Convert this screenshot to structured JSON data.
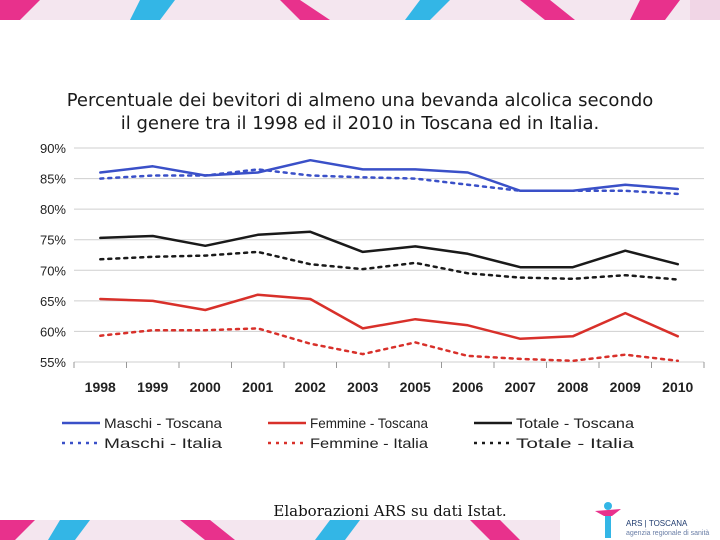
{
  "slide": {
    "title_line1": "Percentuale dei bevitori di almeno una bevanda alcolica secondo",
    "title_line2": "il genere tra il 1998 ed il 2010 in Toscana ed in Italia.",
    "caption": "Elaborazioni ARS su dati Istat.",
    "logo_text": "ARS | TOSCANA",
    "logo_subtext": "agenzia regionale di sanità"
  },
  "colors": {
    "blue": "#3a50c8",
    "red": "#d8302a",
    "black": "#1a1a1a",
    "grid": "#cfcfcf",
    "band_pink": "#e8318c",
    "band_cyan": "#33b6e6",
    "band_light": "#f1d6e6"
  },
  "chart_data": {
    "type": "line",
    "title": "",
    "xlabel": "",
    "ylabel": "",
    "x": [
      "1998",
      "1999",
      "2000",
      "2001",
      "2002",
      "2003",
      "2005",
      "2006",
      "2007",
      "2008",
      "2009",
      "2010"
    ],
    "y_ticks": [
      "90%",
      "85%",
      "80%",
      "75%",
      "70%",
      "65%",
      "60%",
      "55%"
    ],
    "ylim": [
      55,
      90
    ],
    "grid": true,
    "legend_position": "bottom",
    "series": [
      {
        "name": "Maschi - Toscana",
        "color": "blue",
        "style": "solid",
        "values": [
          86.0,
          87.0,
          85.5,
          86.0,
          88.0,
          86.5,
          86.5,
          86.0,
          83.0,
          83.0,
          84.0,
          83.3
        ]
      },
      {
        "name": "Maschi - Italia",
        "color": "blue",
        "style": "dotted",
        "values": [
          85.0,
          85.5,
          85.5,
          86.5,
          85.5,
          85.2,
          85.0,
          84.0,
          83.0,
          83.0,
          83.0,
          82.5
        ]
      },
      {
        "name": "Femmine - Toscana",
        "color": "red",
        "style": "solid",
        "values": [
          65.3,
          65.0,
          63.5,
          66.0,
          65.3,
          60.5,
          62.0,
          61.0,
          58.8,
          59.2,
          63.0,
          59.2
        ]
      },
      {
        "name": "Femmine - Italia",
        "color": "red",
        "style": "dotted",
        "values": [
          59.3,
          60.2,
          60.2,
          60.5,
          58.0,
          56.3,
          58.2,
          56.0,
          55.5,
          55.2,
          56.2,
          55.2
        ]
      },
      {
        "name": "Totale - Toscana",
        "color": "black",
        "style": "solid",
        "values": [
          75.3,
          75.6,
          74.0,
          75.8,
          76.3,
          73.0,
          73.9,
          72.7,
          70.5,
          70.5,
          73.2,
          71.0
        ]
      },
      {
        "name": "Totale - Italia",
        "color": "black",
        "style": "dotted",
        "values": [
          71.8,
          72.2,
          72.4,
          73.0,
          71.0,
          70.2,
          71.2,
          69.5,
          68.8,
          68.6,
          69.2,
          68.5
        ]
      }
    ]
  }
}
